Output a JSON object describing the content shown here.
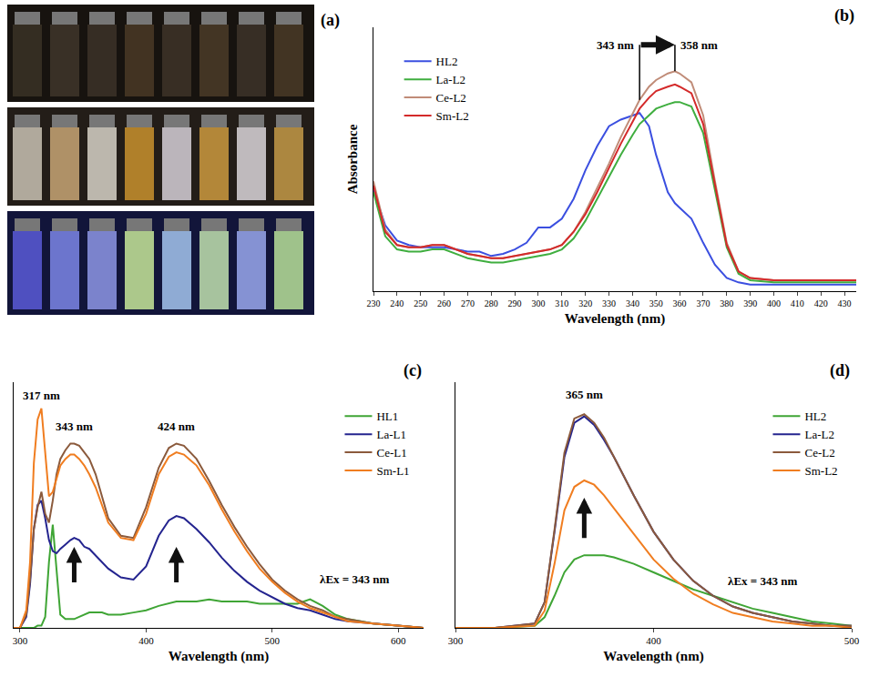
{
  "photo": {
    "panel": "(a)"
  },
  "chart_data": [
    {
      "type": "line",
      "panel": "(b)",
      "xlabel": "Wavelength (nm)",
      "ylabel": "Absorbance",
      "x": [
        230,
        235,
        240,
        245,
        250,
        255,
        260,
        265,
        270,
        275,
        280,
        285,
        290,
        295,
        300,
        305,
        310,
        315,
        320,
        325,
        330,
        335,
        340,
        343,
        347,
        350,
        355,
        358,
        360,
        365,
        370,
        375,
        380,
        385,
        390,
        400,
        410,
        420,
        435
      ],
      "series": [
        {
          "name": "HL2",
          "color": "#3b4fe0",
          "values": [
            0.46,
            0.3,
            0.23,
            0.21,
            0.2,
            0.2,
            0.2,
            0.19,
            0.18,
            0.18,
            0.16,
            0.17,
            0.19,
            0.22,
            0.29,
            0.29,
            0.33,
            0.42,
            0.55,
            0.66,
            0.75,
            0.78,
            0.8,
            0.81,
            0.75,
            0.62,
            0.45,
            0.4,
            0.38,
            0.33,
            0.22,
            0.12,
            0.06,
            0.04,
            0.03,
            0.03,
            0.03,
            0.03,
            0.03
          ]
        },
        {
          "name": "La-L2",
          "color": "#3fae3f",
          "values": [
            0.45,
            0.25,
            0.19,
            0.18,
            0.18,
            0.19,
            0.19,
            0.17,
            0.15,
            0.14,
            0.13,
            0.13,
            0.14,
            0.15,
            0.16,
            0.17,
            0.19,
            0.24,
            0.32,
            0.42,
            0.52,
            0.62,
            0.71,
            0.76,
            0.8,
            0.83,
            0.85,
            0.86,
            0.86,
            0.84,
            0.72,
            0.46,
            0.2,
            0.08,
            0.05,
            0.04,
            0.04,
            0.04,
            0.04
          ]
        },
        {
          "name": "Ce-L2",
          "color": "#c08c78",
          "values": [
            0.5,
            0.28,
            0.21,
            0.2,
            0.2,
            0.21,
            0.21,
            0.19,
            0.17,
            0.16,
            0.15,
            0.15,
            0.16,
            0.17,
            0.18,
            0.19,
            0.21,
            0.27,
            0.36,
            0.47,
            0.58,
            0.7,
            0.81,
            0.87,
            0.93,
            0.96,
            0.99,
            1.0,
            0.99,
            0.95,
            0.8,
            0.5,
            0.22,
            0.09,
            0.06,
            0.05,
            0.05,
            0.05,
            0.05
          ]
        },
        {
          "name": "Sm-L2",
          "color": "#d42a2a",
          "values": [
            0.48,
            0.27,
            0.21,
            0.2,
            0.2,
            0.21,
            0.21,
            0.19,
            0.17,
            0.16,
            0.15,
            0.15,
            0.16,
            0.17,
            0.18,
            0.19,
            0.21,
            0.27,
            0.35,
            0.45,
            0.56,
            0.67,
            0.77,
            0.83,
            0.88,
            0.91,
            0.93,
            0.94,
            0.93,
            0.9,
            0.76,
            0.48,
            0.21,
            0.09,
            0.06,
            0.05,
            0.05,
            0.05,
            0.05
          ]
        }
      ],
      "xlim": [
        230,
        435
      ],
      "xticks": [
        230,
        240,
        250,
        260,
        270,
        280,
        290,
        300,
        310,
        320,
        330,
        340,
        350,
        360,
        370,
        380,
        390,
        400,
        410,
        420,
        430
      ],
      "ylim": [
        0,
        1.2
      ],
      "tick_labels": "x",
      "grid": false,
      "legend": "upper left",
      "annotations": [
        {
          "text": "343 nm",
          "x": 343,
          "y": 1.12
        },
        {
          "text": "358 nm",
          "x": 358,
          "y": 1.12
        }
      ]
    },
    {
      "type": "line",
      "panel": "(c)",
      "xlabel": "Wavelength (nm)",
      "x": [
        295,
        300,
        305,
        308,
        311,
        314,
        317,
        320,
        323,
        326,
        329,
        332,
        336,
        340,
        343,
        347,
        351,
        355,
        360,
        365,
        370,
        380,
        390,
        400,
        410,
        418,
        424,
        430,
        440,
        450,
        460,
        470,
        480,
        490,
        500,
        510,
        520,
        530,
        540,
        550,
        560,
        580,
        600,
        620
      ],
      "series": [
        {
          "name": "HL1",
          "color": "#3fa535",
          "values": [
            0,
            0,
            0,
            0,
            0,
            0.01,
            0.01,
            0.05,
            0.3,
            0.47,
            0.25,
            0.06,
            0.04,
            0.04,
            0.04,
            0.05,
            0.06,
            0.07,
            0.07,
            0.07,
            0.06,
            0.06,
            0.07,
            0.08,
            0.1,
            0.11,
            0.12,
            0.12,
            0.12,
            0.13,
            0.12,
            0.12,
            0.12,
            0.11,
            0.11,
            0.11,
            0.11,
            0.13,
            0.1,
            0.06,
            0.04,
            0.02,
            0.01,
            0
          ]
        },
        {
          "name": "La-L1",
          "color": "#24248f",
          "values": [
            0,
            0,
            0.05,
            0.2,
            0.45,
            0.56,
            0.58,
            0.5,
            0.4,
            0.35,
            0.34,
            0.36,
            0.38,
            0.4,
            0.41,
            0.4,
            0.37,
            0.36,
            0.33,
            0.3,
            0.27,
            0.23,
            0.22,
            0.28,
            0.42,
            0.49,
            0.51,
            0.5,
            0.45,
            0.39,
            0.32,
            0.26,
            0.21,
            0.17,
            0.14,
            0.11,
            0.09,
            0.08,
            0.06,
            0.04,
            0.03,
            0.02,
            0.01,
            0
          ]
        },
        {
          "name": "Ce-L1",
          "color": "#8b5a3c",
          "values": [
            0,
            0,
            0.06,
            0.22,
            0.45,
            0.55,
            0.62,
            0.52,
            0.48,
            0.58,
            0.7,
            0.77,
            0.81,
            0.84,
            0.84,
            0.83,
            0.8,
            0.77,
            0.7,
            0.6,
            0.5,
            0.42,
            0.41,
            0.55,
            0.73,
            0.82,
            0.84,
            0.83,
            0.77,
            0.67,
            0.56,
            0.46,
            0.37,
            0.29,
            0.22,
            0.17,
            0.13,
            0.1,
            0.08,
            0.05,
            0.04,
            0.02,
            0.01,
            0
          ]
        },
        {
          "name": "Sm-L1",
          "color": "#f07d20",
          "values": [
            0,
            0,
            0.08,
            0.3,
            0.75,
            0.95,
            1.0,
            0.8,
            0.6,
            0.62,
            0.68,
            0.74,
            0.77,
            0.79,
            0.79,
            0.77,
            0.74,
            0.7,
            0.64,
            0.56,
            0.48,
            0.41,
            0.4,
            0.52,
            0.7,
            0.78,
            0.8,
            0.79,
            0.74,
            0.65,
            0.54,
            0.44,
            0.35,
            0.27,
            0.21,
            0.16,
            0.12,
            0.09,
            0.07,
            0.05,
            0.03,
            0.02,
            0.01,
            0
          ]
        }
      ],
      "xlim": [
        295,
        620
      ],
      "xticks": [
        300,
        400,
        500,
        600
      ],
      "ylim": [
        0,
        1.12
      ],
      "tick_labels": "x",
      "grid": false,
      "legend": "upper right",
      "annotations": [
        {
          "text": "317 nm",
          "x": 317,
          "y": 1.02
        },
        {
          "text": "343 nm",
          "x": 343,
          "y": 0.88
        },
        {
          "text": "424 nm",
          "x": 424,
          "y": 0.88
        },
        {
          "text": "λEx = 343 nm",
          "x": 565,
          "y": 0.22
        }
      ]
    },
    {
      "type": "line",
      "panel": "(d)",
      "xlabel": "Wavelength (nm)",
      "x": [
        300,
        320,
        340,
        345,
        350,
        355,
        360,
        365,
        370,
        375,
        380,
        390,
        400,
        410,
        420,
        430,
        440,
        450,
        460,
        470,
        480,
        490,
        500
      ],
      "series": [
        {
          "name": "HL2",
          "color": "#3fa535",
          "values": [
            0,
            0,
            0.01,
            0.05,
            0.15,
            0.26,
            0.32,
            0.34,
            0.34,
            0.34,
            0.33,
            0.3,
            0.26,
            0.22,
            0.18,
            0.15,
            0.12,
            0.09,
            0.07,
            0.05,
            0.03,
            0.02,
            0.01
          ]
        },
        {
          "name": "La-L2",
          "color": "#24248f",
          "values": [
            0,
            0,
            0.02,
            0.12,
            0.45,
            0.8,
            0.96,
            0.99,
            0.95,
            0.88,
            0.8,
            0.62,
            0.45,
            0.32,
            0.22,
            0.15,
            0.1,
            0.07,
            0.05,
            0.03,
            0.02,
            0.01,
            0.01
          ]
        },
        {
          "name": "Ce-L2",
          "color": "#8b5a3c",
          "values": [
            0,
            0,
            0.02,
            0.12,
            0.46,
            0.82,
            0.98,
            1.0,
            0.96,
            0.89,
            0.8,
            0.62,
            0.45,
            0.32,
            0.22,
            0.15,
            0.1,
            0.07,
            0.05,
            0.03,
            0.02,
            0.01,
            0.01
          ]
        },
        {
          "name": "Sm-L2",
          "color": "#f07d20",
          "values": [
            0,
            0,
            0.01,
            0.08,
            0.3,
            0.55,
            0.66,
            0.69,
            0.67,
            0.62,
            0.56,
            0.44,
            0.32,
            0.23,
            0.16,
            0.11,
            0.07,
            0.05,
            0.03,
            0.02,
            0.01,
            0.01,
            0
          ]
        }
      ],
      "xlim": [
        300,
        500
      ],
      "xticks": [
        300,
        400,
        500
      ],
      "ylim": [
        0,
        1.15
      ],
      "tick_labels": "x",
      "grid": false,
      "legend": "upper right",
      "annotations": [
        {
          "text": "365 nm",
          "x": 365,
          "y": 1.05
        },
        {
          "text": "λEx = 343 nm",
          "x": 455,
          "y": 0.22
        }
      ]
    }
  ]
}
